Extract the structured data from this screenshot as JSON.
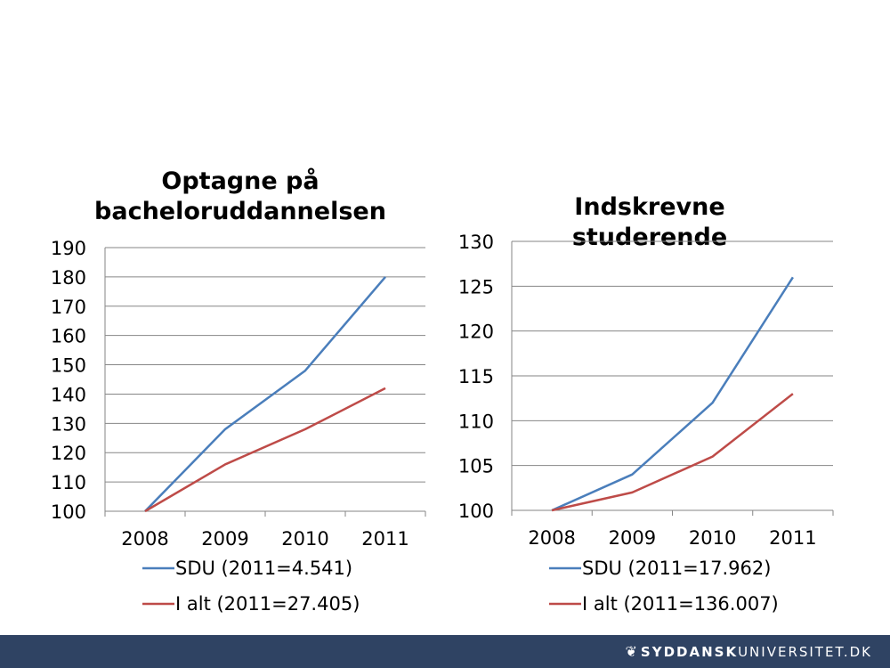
{
  "chart_data": [
    {
      "type": "line",
      "title": "Optagne på bacheloruddannelsen",
      "categories": [
        "2008",
        "2009",
        "2010",
        "2011"
      ],
      "ylim": [
        100,
        190
      ],
      "yticks": [
        "100",
        "110",
        "120",
        "130",
        "140",
        "150",
        "160",
        "170",
        "180",
        "190"
      ],
      "grid": true,
      "legend_position": "bottom",
      "series": [
        {
          "name": "SDU (2011=4.541)",
          "color": "#4a7ebb",
          "values": [
            100,
            128,
            148,
            180
          ]
        },
        {
          "name": "I alt (2011=27.405)",
          "color": "#be4b48",
          "values": [
            100,
            116,
            128,
            142
          ]
        }
      ]
    },
    {
      "type": "line",
      "title": "Indskrevne studerende",
      "categories": [
        "2008",
        "2009",
        "2010",
        "2011"
      ],
      "ylim": [
        100,
        130
      ],
      "yticks": [
        "100",
        "105",
        "110",
        "115",
        "120",
        "125",
        "130"
      ],
      "grid": true,
      "legend_position": "bottom",
      "series": [
        {
          "name": "SDU (2011=17.962)",
          "color": "#4a7ebb",
          "values": [
            100,
            104,
            112,
            126
          ]
        },
        {
          "name": "I alt (2011=136.007)",
          "color": "#be4b48",
          "values": [
            100,
            102,
            106,
            113
          ]
        }
      ]
    }
  ],
  "footer": {
    "logo_icon": "leaf-icon",
    "logo_bold": "SYDDANSK",
    "logo_regular": "UNIVERSITET.DK"
  }
}
